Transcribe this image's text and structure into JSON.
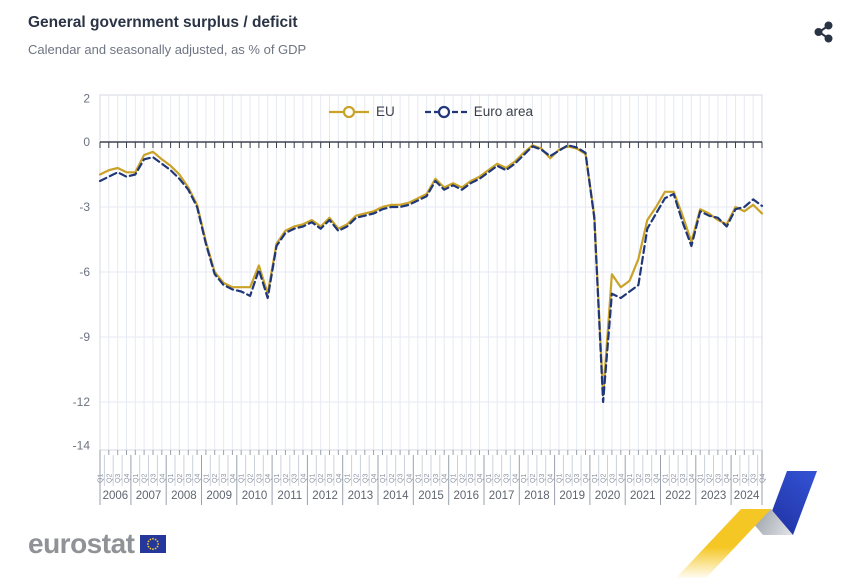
{
  "header": {
    "title": "General government surplus / deficit",
    "subtitle": "Calendar and seasonally adjusted, as % of GDP"
  },
  "toolbar": {
    "share_icon": "share"
  },
  "legend": {
    "eu_label": "EU",
    "euro_area_label": "Euro area"
  },
  "footer": {
    "logo_text": "eurostat"
  },
  "colors": {
    "eu": "#C9A227",
    "euro_area": "#203778",
    "zero_line": "#3C4250",
    "grid": "#E6EAF3",
    "frame": "#D5DAE6",
    "axis_text": "#6B7280",
    "band_line": "#9AA1AE",
    "quarter_line": "#CBD0DA",
    "quarter_text": "#8C93A0",
    "year_text": "#5E6570",
    "title": "#2B3445",
    "subtitle": "#6E7582",
    "logo_gray": "#8F9296",
    "flag_blue": "#26379B",
    "star_yellow": "#F5C724",
    "ribbon_yellow": "#F5C724",
    "ribbon_gray": "#AFB4BC",
    "ribbon_blue": "#2B46C8"
  },
  "chart_data": {
    "type": "line",
    "title": "General government surplus / deficit",
    "subtitle": "Calendar and seasonally adjusted, as % of GDP",
    "ylabel": "% of GDP",
    "yticks": [
      2,
      0,
      -3,
      -6,
      -9,
      -12,
      -14
    ],
    "ylim": [
      -14.2,
      2.2
    ],
    "grid": true,
    "legend_position": "top-center",
    "x_years": [
      "2006",
      "2007",
      "2008",
      "2009",
      "2010",
      "2011",
      "2012",
      "2013",
      "2014",
      "2015",
      "2016",
      "2017",
      "2018",
      "2019",
      "2020",
      "2021",
      "2022",
      "2023",
      "2024"
    ],
    "quarter_labels": [
      "Q1",
      "Q2",
      "Q3",
      "Q4"
    ],
    "series": [
      {
        "name": "EU",
        "style": "solid",
        "color": "#C9A227",
        "values": [
          -1.5,
          -1.3,
          -1.2,
          -1.4,
          -1.4,
          -0.6,
          -0.45,
          -0.8,
          -1.1,
          -1.5,
          -2.1,
          -2.9,
          -4.6,
          -6.0,
          -6.5,
          -6.7,
          -6.7,
          -6.7,
          -5.7,
          -7.0,
          -4.7,
          -4.1,
          -3.9,
          -3.8,
          -3.6,
          -3.9,
          -3.5,
          -4.0,
          -3.8,
          -3.4,
          -3.3,
          -3.2,
          -3.0,
          -2.9,
          -2.9,
          -2.8,
          -2.6,
          -2.4,
          -1.7,
          -2.1,
          -1.9,
          -2.1,
          -1.8,
          -1.6,
          -1.3,
          -1.0,
          -1.2,
          -0.9,
          -0.5,
          -0.15,
          -0.3,
          -0.75,
          -0.35,
          -0.2,
          -0.3,
          -0.55,
          -3.4,
          -11.7,
          -6.1,
          -6.7,
          -6.4,
          -5.4,
          -3.6,
          -3.0,
          -2.3,
          -2.3,
          -3.4,
          -4.6,
          -3.1,
          -3.3,
          -3.6,
          -3.8,
          -3.0,
          -3.2,
          -2.9,
          -3.3
        ]
      },
      {
        "name": "Euro area",
        "style": "dashed",
        "color": "#203778",
        "values": [
          -1.8,
          -1.6,
          -1.4,
          -1.6,
          -1.5,
          -0.8,
          -0.7,
          -1.0,
          -1.3,
          -1.7,
          -2.2,
          -3.0,
          -4.7,
          -6.1,
          -6.6,
          -6.8,
          -6.9,
          -7.1,
          -5.9,
          -7.2,
          -4.8,
          -4.2,
          -4.0,
          -3.9,
          -3.7,
          -4.0,
          -3.6,
          -4.1,
          -3.9,
          -3.5,
          -3.4,
          -3.3,
          -3.1,
          -3.0,
          -3.0,
          -2.9,
          -2.7,
          -2.5,
          -1.8,
          -2.2,
          -2.0,
          -2.2,
          -1.9,
          -1.7,
          -1.4,
          -1.1,
          -1.3,
          -1.0,
          -0.6,
          -0.2,
          -0.35,
          -0.65,
          -0.4,
          -0.15,
          -0.25,
          -0.5,
          -3.5,
          -12.0,
          -7.0,
          -7.2,
          -6.9,
          -6.6,
          -4.0,
          -3.3,
          -2.6,
          -2.4,
          -3.7,
          -4.8,
          -3.2,
          -3.4,
          -3.5,
          -3.9,
          -3.1,
          -3.0,
          -2.65,
          -2.95
        ]
      }
    ]
  }
}
